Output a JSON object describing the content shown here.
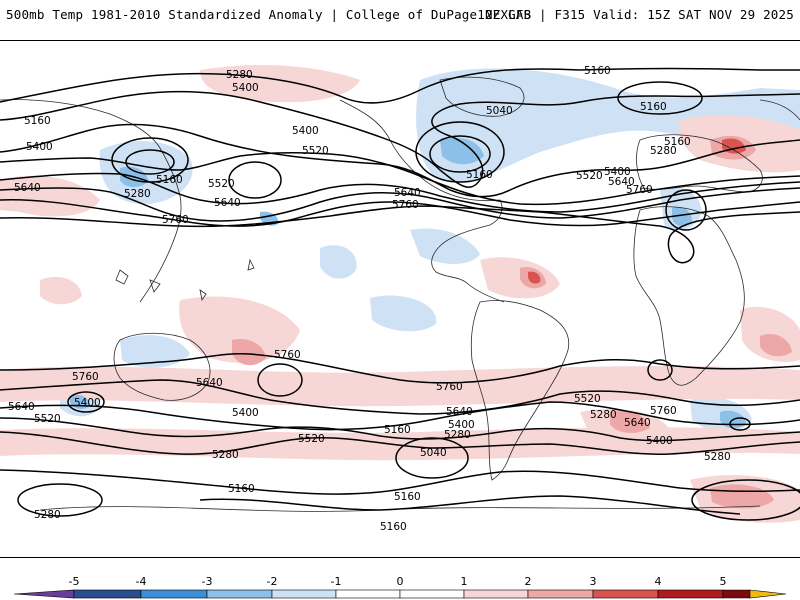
{
  "header": {
    "left_title": "500mb Temp 1981-2010 Standardized Anomaly | College of DuPage NEXLAB",
    "right_title": "12Z GFS | F315 Valid: 15Z SAT NOV 29 2025"
  },
  "colors": {
    "neg5": "#6a3d9a",
    "neg4": "#2b4f8c",
    "neg3": "#3b8fd6",
    "neg2": "#8cc0e8",
    "neg1": "#cfe2f5",
    "pos1": "#f7d6d6",
    "pos2": "#eda7a7",
    "pos3": "#d9534f",
    "pos4": "#b0191e",
    "pos5": "#7a0c10",
    "extreme_high": "#f2b90f",
    "contour": "#000000",
    "coastline": "#2a2a2a"
  },
  "colorbar": {
    "tick_labels": [
      "-5",
      "-4",
      "-3",
      "-2",
      "-1",
      "0",
      "1",
      "2",
      "3",
      "4",
      "5"
    ]
  },
  "contour_labels": [
    "5280",
    "5400",
    "5160",
    "5400",
    "5640",
    "5280",
    "5160",
    "5520",
    "5400",
    "5520",
    "5640",
    "5760",
    "5040",
    "5160",
    "5160",
    "5640",
    "5760",
    "5520",
    "5400",
    "5640",
    "5760",
    "5160",
    "5280",
    "5160",
    "5760",
    "5760",
    "5640",
    "5640",
    "5400",
    "5520",
    "5400",
    "5520",
    "5280",
    "5040",
    "5160",
    "5280",
    "5400",
    "5640",
    "5760",
    "5520",
    "5280",
    "5640",
    "5760",
    "5400",
    "5280",
    "5160",
    "5160",
    "5280",
    "5160"
  ]
}
